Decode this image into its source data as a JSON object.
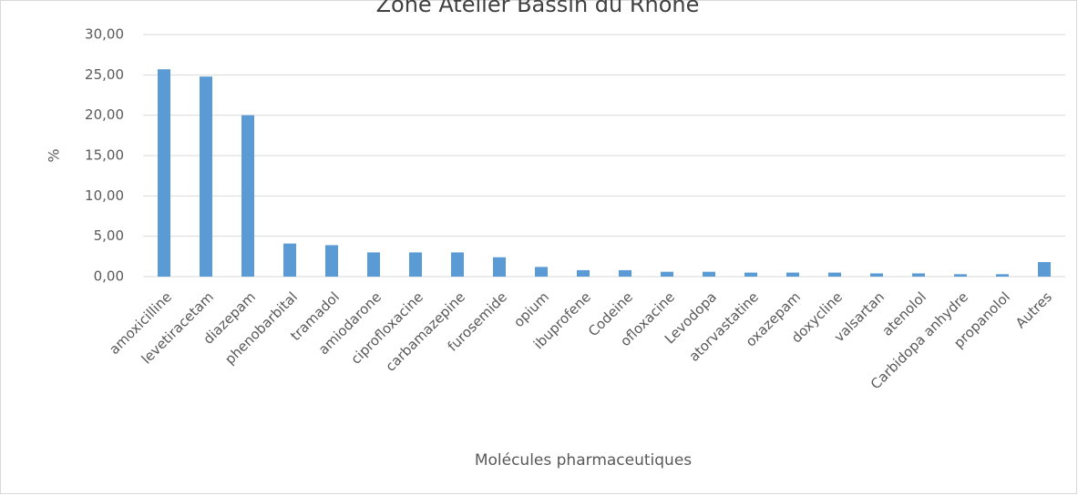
{
  "chart_data": {
    "type": "bar",
    "title": "Zone Atelier Bassin du Rhône",
    "x_label": "Molécules pharmaceutiques",
    "y_label": "%",
    "categories": [
      "amoxicilline",
      "levetiracetam",
      "diazepam",
      "phenobarbital",
      "tramadol",
      "amiodarone",
      "ciprofloxacine",
      "carbamazepine",
      "furosemide",
      "opium",
      "ibuprofene",
      "Codeine",
      "ofloxacine",
      "Levodopa",
      "atorvastatine",
      "oxazepam",
      "doxycline",
      "valsartan",
      "atenolol",
      "Carbidopa anhydre",
      "propanolol",
      "Autres"
    ],
    "values": [
      25.7,
      24.8,
      20.0,
      4.1,
      3.9,
      3.0,
      3.0,
      3.0,
      2.4,
      1.2,
      0.8,
      0.8,
      0.6,
      0.6,
      0.5,
      0.5,
      0.5,
      0.4,
      0.4,
      0.3,
      0.3,
      1.8
    ],
    "color": "#5b9bd5",
    "ylim": [
      0,
      30
    ],
    "yticks": [
      {
        "value": 0,
        "label": "0,00"
      },
      {
        "value": 5,
        "label": "5,00"
      },
      {
        "value": 10,
        "label": "10,00"
      },
      {
        "value": 15,
        "label": "15,00"
      },
      {
        "value": 20,
        "label": "20,00"
      },
      {
        "value": 25,
        "label": "25,00"
      },
      {
        "value": 30,
        "label": "30,00"
      }
    ],
    "grid": true
  }
}
